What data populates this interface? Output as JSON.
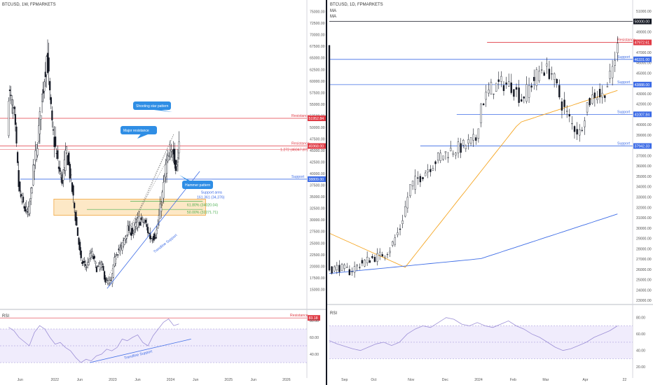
{
  "chart_data": [
    {
      "type": "candlestick",
      "title": "BTCUSD, 1W, FPMARKETS",
      "x_ticks": [
        "Jun",
        "2022",
        "Jun",
        "2023",
        "Jun",
        "2024",
        "Jun",
        "2025",
        "Jun",
        "2026"
      ],
      "y_ticks": [
        "75000.00",
        "72500.00",
        "70000.00",
        "67500.00",
        "65000.00",
        "62500.00",
        "60000.00",
        "57500.00",
        "55000.00",
        "52500.00",
        "50000.00",
        "47500.00",
        "45000.00",
        "42500.00",
        "40000.00",
        "37500.00",
        "35000.00",
        "32500.00",
        "30000.00",
        "27500.00",
        "25000.00",
        "22500.00",
        "20000.00",
        "17500.00",
        "15000.00"
      ],
      "ylim": [
        14000,
        76000
      ],
      "price_path": [
        [
          2021.2,
          58000
        ],
        [
          2021.3,
          52000
        ],
        [
          2021.38,
          36000
        ],
        [
          2021.46,
          33000
        ],
        [
          2021.54,
          31000
        ],
        [
          2021.62,
          40000
        ],
        [
          2021.7,
          47000
        ],
        [
          2021.78,
          57000
        ],
        [
          2021.86,
          66000
        ],
        [
          2021.95,
          50000
        ],
        [
          2022.05,
          42000
        ],
        [
          2022.12,
          38500
        ],
        [
          2022.2,
          45000
        ],
        [
          2022.28,
          38000
        ],
        [
          2022.36,
          30000
        ],
        [
          2022.45,
          21000
        ],
        [
          2022.55,
          20000
        ],
        [
          2022.63,
          23000
        ],
        [
          2022.72,
          19500
        ],
        [
          2022.8,
          20500
        ],
        [
          2022.88,
          16500
        ],
        [
          2022.97,
          16600
        ],
        [
          2023.05,
          23000
        ],
        [
          2023.15,
          24000
        ],
        [
          2023.25,
          28000
        ],
        [
          2023.35,
          27500
        ],
        [
          2023.45,
          30000
        ],
        [
          2023.55,
          29500
        ],
        [
          2023.65,
          26000
        ],
        [
          2023.75,
          27000
        ],
        [
          2023.85,
          35000
        ],
        [
          2023.92,
          42000
        ],
        [
          2024.0,
          44000
        ],
        [
          2024.05,
          46000
        ],
        [
          2024.08,
          41000
        ],
        [
          2024.12,
          43000
        ],
        [
          2024.14,
          47000
        ]
      ],
      "levels": [
        {
          "label": "Resistance",
          "value": 51952.84,
          "tag": "51952.84",
          "color": "#e03b45"
        },
        {
          "label": "Resistance",
          "value": 45968.0,
          "tag": "45968.00",
          "color": "#e03b45"
        },
        {
          "label": "Support",
          "value": 38809.0,
          "tag": "38809.00",
          "color": "#3d6ce6"
        }
      ],
      "fib_labels": [
        "1.272 (46047.87)",
        "161.361 (34,376)",
        "61.80% (34020.04)",
        "50.00% (32271.71)"
      ],
      "support_area": [
        31000,
        34500
      ],
      "trendline_label": "Trendline Support",
      "support_area_label": "Support area",
      "callouts": [
        "Shooting star pattern",
        "Major resistance",
        "Hammer pattern"
      ],
      "rsi": {
        "label": "RSI",
        "value_tag": "83.18",
        "resistance_label": "Resistance",
        "y_ticks": [
          "80.00",
          "60.00",
          "40.00"
        ],
        "trendline_label": "Trendline Support",
        "values": [
          72,
          68,
          60,
          55,
          50,
          66,
          74,
          70,
          60,
          52,
          54,
          48,
          44,
          36,
          30,
          34,
          32,
          38,
          40,
          46,
          44,
          48,
          58,
          56,
          60,
          63,
          54,
          50,
          62,
          70,
          78,
          82,
          74,
          76
        ]
      }
    },
    {
      "type": "candlestick",
      "title": "BTCUSD, 1D, FPMARKETS",
      "ma_labels": [
        "MA",
        "MA"
      ],
      "x_ticks": [
        "Sep",
        "Oct",
        "Nov",
        "Dec",
        "2024",
        "Feb",
        "Mar",
        "Apr",
        "22"
      ],
      "y_ticks": [
        "51000.00",
        "49000.00",
        "48000.00",
        "47000.00",
        "46000.00",
        "45000.00",
        "44000.00",
        "43000.00",
        "42000.00",
        "41000.00",
        "40000.00",
        "39000.00",
        "38000.00",
        "37000.00",
        "36000.00",
        "35000.00",
        "34000.00",
        "33000.00",
        "32000.00",
        "31000.00",
        "30000.00",
        "29000.00",
        "28000.00",
        "27000.00",
        "26000.00",
        "25000.00",
        "24000.00",
        "23000.00"
      ],
      "ylim": [
        22800,
        51400
      ],
      "price_path": [
        [
          0,
          26000
        ],
        [
          8,
          26200
        ],
        [
          16,
          25800
        ],
        [
          24,
          26500
        ],
        [
          32,
          27000
        ],
        [
          40,
          27300
        ],
        [
          48,
          28000
        ],
        [
          56,
          30000
        ],
        [
          64,
          34000
        ],
        [
          72,
          35000
        ],
        [
          80,
          36000
        ],
        [
          88,
          37000
        ],
        [
          96,
          37500
        ],
        [
          104,
          37800
        ],
        [
          112,
          38300
        ],
        [
          116,
          38600
        ],
        [
          120,
          42000
        ],
        [
          128,
          43500
        ],
        [
          136,
          44000
        ],
        [
          144,
          43800
        ],
        [
          152,
          42500
        ],
        [
          160,
          44000
        ],
        [
          168,
          45500
        ],
        [
          176,
          45000
        ],
        [
          184,
          42000
        ],
        [
          192,
          40000
        ],
        [
          198,
          39200
        ],
        [
          204,
          42000
        ],
        [
          210,
          43000
        ],
        [
          216,
          42800
        ],
        [
          222,
          44500
        ],
        [
          228,
          47500
        ]
      ],
      "levels": [
        {
          "label": "Resistance",
          "value": 47972.61,
          "tag": "47972.61",
          "color": "#e03b45"
        },
        {
          "label": "Support",
          "value": 46331.0,
          "tag": "46331.00",
          "color": "#3d6ce6"
        },
        {
          "label": "Support",
          "value": 43888.0,
          "tag": "43888.00",
          "color": "#3d6ce6"
        },
        {
          "label": "Support",
          "value": 41007.84,
          "tag": "41007.84",
          "color": "#3d6ce6"
        },
        {
          "label": "Support",
          "value": 37942.33,
          "tag": "37942.33",
          "color": "#3d6ce6"
        }
      ],
      "round_tag": "50000.00",
      "rsi": {
        "label": "RSI",
        "y_ticks": [
          "80.00",
          "60.00",
          "40.00",
          "20.00"
        ],
        "values": [
          52,
          48,
          45,
          42,
          40,
          44,
          48,
          50,
          46,
          50,
          60,
          66,
          70,
          68,
          74,
          80,
          78,
          72,
          70,
          74,
          70,
          68,
          72,
          76,
          70,
          66,
          60,
          56,
          50,
          44,
          40,
          42,
          46,
          50,
          56,
          60,
          64,
          70
        ]
      }
    }
  ]
}
